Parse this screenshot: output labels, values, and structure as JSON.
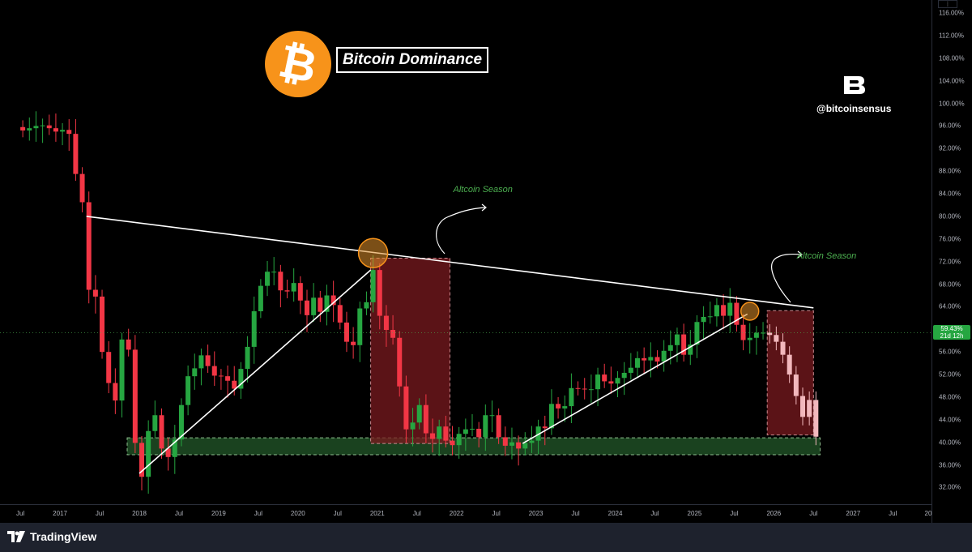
{
  "window": {
    "app": "TradingView",
    "menu_icon": "expand-icon"
  },
  "colors": {
    "up": "#26a641",
    "down": "#f23645",
    "forecast": "#f2b8bd",
    "zone_red": "#7a1a1f",
    "zone_green": "#1e4d24",
    "accent_btc": "#f7931a",
    "season_text": "#4caf50"
  },
  "annotations": {
    "title": "Bitcoin Dominance",
    "coin_symbol": "₿",
    "brand_handle": "@bitcoinsensus",
    "season_labels": [
      "Altcoin Season",
      "Altcoin Season"
    ]
  },
  "price_axis": {
    "labels": [
      "116.00%",
      "112.00%",
      "108.00%",
      "104.00%",
      "100.00%",
      "96.00%",
      "92.00%",
      "88.00%",
      "84.00%",
      "80.00%",
      "76.00%",
      "72.00%",
      "68.00%",
      "64.00%",
      "60.00%",
      "56.00%",
      "52.00%",
      "48.00%",
      "44.00%",
      "40.00%",
      "36.00%",
      "32.00%"
    ],
    "current_value": "59.43%",
    "countdown": "21d 12h"
  },
  "time_axis": {
    "labels": [
      "Jul",
      "2017",
      "Jul",
      "2018",
      "Jul",
      "2019",
      "Jul",
      "2020",
      "Jul",
      "2021",
      "Jul",
      "2022",
      "Jul",
      "2023",
      "Jul",
      "2024",
      "Jul",
      "2025",
      "Jul",
      "2026",
      "Jul",
      "2027",
      "Jul",
      "20"
    ]
  },
  "footer": {
    "brand": "TradingView"
  },
  "chart_data": {
    "type": "candlestick",
    "title": "Bitcoin Dominance",
    "ylabel": "",
    "y_unit": "%",
    "ylim": [
      30,
      118
    ],
    "x_range": [
      "2016-06",
      "2027-12"
    ],
    "grid": false,
    "monthly_close": [
      [
        "2016-07",
        95.2
      ],
      [
        "2016-08",
        95.6
      ],
      [
        "2016-09",
        96.0
      ],
      [
        "2016-10",
        96.1
      ],
      [
        "2016-11",
        95.6
      ],
      [
        "2016-12",
        95.0
      ],
      [
        "2017-01",
        95.3
      ],
      [
        "2017-02",
        94.6
      ],
      [
        "2017-03",
        87.5
      ],
      [
        "2017-04",
        82.5
      ],
      [
        "2017-05",
        67.0
      ],
      [
        "2017-06",
        65.8
      ],
      [
        "2017-07",
        56.0
      ],
      [
        "2017-08",
        50.5
      ],
      [
        "2017-09",
        47.4
      ],
      [
        "2017-10",
        58.2
      ],
      [
        "2017-11",
        56.4
      ],
      [
        "2017-12",
        39.9
      ],
      [
        "2018-01",
        33.9
      ],
      [
        "2018-02",
        42.0
      ],
      [
        "2018-03",
        44.8
      ],
      [
        "2018-04",
        38.9
      ],
      [
        "2018-05",
        37.4
      ],
      [
        "2018-06",
        40.5
      ],
      [
        "2018-07",
        46.6
      ],
      [
        "2018-08",
        51.7
      ],
      [
        "2018-09",
        53.1
      ],
      [
        "2018-10",
        55.4
      ],
      [
        "2018-11",
        53.5
      ],
      [
        "2018-12",
        51.8
      ],
      [
        "2019-01",
        51.7
      ],
      [
        "2019-02",
        50.9
      ],
      [
        "2019-03",
        49.5
      ],
      [
        "2019-04",
        53.0
      ],
      [
        "2019-05",
        56.9
      ],
      [
        "2019-06",
        63.2
      ],
      [
        "2019-07",
        67.7
      ],
      [
        "2019-08",
        70.2
      ],
      [
        "2019-09",
        70.2
      ],
      [
        "2019-10",
        66.9
      ],
      [
        "2019-11",
        66.7
      ],
      [
        "2019-12",
        68.2
      ],
      [
        "2020-01",
        65.1
      ],
      [
        "2020-02",
        62.5
      ],
      [
        "2020-03",
        65.6
      ],
      [
        "2020-04",
        63.1
      ],
      [
        "2020-05",
        66.0
      ],
      [
        "2020-06",
        64.3
      ],
      [
        "2020-07",
        61.2
      ],
      [
        "2020-08",
        57.8
      ],
      [
        "2020-09",
        57.2
      ],
      [
        "2020-10",
        63.7
      ],
      [
        "2020-11",
        64.8
      ],
      [
        "2020-12",
        70.5
      ],
      [
        "2021-01",
        62.4
      ],
      [
        "2021-02",
        59.9
      ],
      [
        "2021-03",
        58.5
      ],
      [
        "2021-04",
        49.9
      ],
      [
        "2021-05",
        42.3
      ],
      [
        "2021-06",
        43.5
      ],
      [
        "2021-07",
        46.6
      ],
      [
        "2021-08",
        41.6
      ],
      [
        "2021-09",
        40.6
      ],
      [
        "2021-10",
        42.8
      ],
      [
        "2021-11",
        40.3
      ],
      [
        "2021-12",
        39.5
      ],
      [
        "2022-01",
        41.5
      ],
      [
        "2022-02",
        42.3
      ],
      [
        "2022-03",
        42.4
      ],
      [
        "2022-04",
        40.9
      ],
      [
        "2022-05",
        44.8
      ],
      [
        "2022-06",
        44.8
      ],
      [
        "2022-07",
        40.9
      ],
      [
        "2022-08",
        39.4
      ],
      [
        "2022-09",
        40.0
      ],
      [
        "2022-10",
        38.9
      ],
      [
        "2022-11",
        39.9
      ],
      [
        "2022-12",
        40.3
      ],
      [
        "2023-01",
        42.8
      ],
      [
        "2023-02",
        42.5
      ],
      [
        "2023-03",
        46.8
      ],
      [
        "2023-04",
        46.0
      ],
      [
        "2023-05",
        46.4
      ],
      [
        "2023-06",
        49.6
      ],
      [
        "2023-07",
        49.5
      ],
      [
        "2023-08",
        49.4
      ],
      [
        "2023-09",
        49.4
      ],
      [
        "2023-10",
        52.0
      ],
      [
        "2023-11",
        50.8
      ],
      [
        "2023-12",
        50.4
      ],
      [
        "2024-01",
        51.4
      ],
      [
        "2024-02",
        52.3
      ],
      [
        "2024-03",
        53.2
      ],
      [
        "2024-04",
        54.9
      ],
      [
        "2024-05",
        54.5
      ],
      [
        "2024-06",
        55.1
      ],
      [
        "2024-07",
        54.3
      ],
      [
        "2024-08",
        56.2
      ],
      [
        "2024-09",
        57.2
      ],
      [
        "2024-10",
        59.1
      ],
      [
        "2024-11",
        55.5
      ],
      [
        "2024-12",
        57.3
      ],
      [
        "2025-01",
        61.3
      ],
      [
        "2025-02",
        62.2
      ],
      [
        "2025-03",
        62.3
      ],
      [
        "2025-04",
        64.3
      ],
      [
        "2025-05",
        62.4
      ],
      [
        "2025-06",
        64.7
      ],
      [
        "2025-07",
        60.8
      ],
      [
        "2025-08",
        58.1
      ],
      [
        "2025-09",
        58.5
      ],
      [
        "2025-10",
        59.4
      ],
      [
        "2025-11",
        59.4
      ]
    ],
    "forecast_path": [
      [
        "2025-12",
        59.0
      ],
      [
        "2026-01",
        57.8
      ],
      [
        "2026-02",
        55.5
      ],
      [
        "2026-03",
        52.0
      ],
      [
        "2026-04",
        48.2
      ],
      [
        "2026-05",
        44.5
      ],
      [
        "2026-06",
        47.5
      ],
      [
        "2026-07",
        41.0
      ]
    ],
    "trendlines": [
      {
        "name": "descending resistance",
        "from": [
          "2017-05",
          80.0
        ],
        "to": [
          "2026-07",
          63.8
        ]
      },
      {
        "name": "rising support 2018-2021",
        "from": [
          "2018-01",
          34.5
        ],
        "to": [
          "2020-12",
          70.5
        ]
      },
      {
        "name": "rising support 2022-2025",
        "from": [
          "2022-11",
          39.8
        ],
        "to": [
          "2025-09",
          62.7
        ]
      }
    ],
    "zones": [
      {
        "kind": "support",
        "from": [
          "2016-06",
          37.8
        ],
        "to": [
          "2026-08",
          40.8
        ]
      },
      {
        "kind": "altcoin-season",
        "from": [
          "2020-12",
          39.8
        ],
        "to": [
          "2021-12",
          72.6
        ]
      },
      {
        "kind": "altcoin-season",
        "from": [
          "2025-12",
          41.3
        ],
        "to": [
          "2026-07",
          63.3
        ]
      }
    ],
    "markers": [
      {
        "kind": "circle",
        "at": [
          "2020-12",
          73.5
        ]
      },
      {
        "kind": "circle",
        "at": [
          "2025-09",
          63.2
        ]
      }
    ],
    "callouts": [
      {
        "text": "Altcoin Season",
        "at": [
          "2021-12",
          84.6
        ]
      },
      {
        "text": "Altcoin Season",
        "at": [
          "2026-04",
          72.8
        ]
      }
    ]
  }
}
